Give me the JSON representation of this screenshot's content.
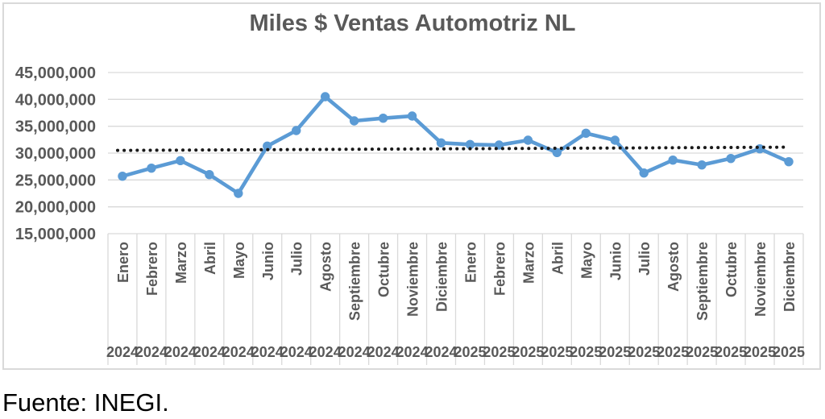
{
  "title": "Miles $ Ventas Automotriz NL",
  "source_note": "Fuente: INEGI.",
  "colors": {
    "series_line": "#5B9BD5",
    "gridline": "#D9D9D9",
    "frame_border": "#D9D9D9",
    "axis_text": "#595959",
    "title_text": "#595959",
    "trendline": "#1A1A1A",
    "source_text": "#000000",
    "background": "#FFFFFF"
  },
  "chart_data": {
    "type": "line",
    "title": "Miles $ Ventas Automotriz NL",
    "grid": true,
    "legend": false,
    "y_axis": {
      "min": 15000000,
      "max": 45000000,
      "tick_interval": 5000000,
      "tick_labels": [
        "45,000,000",
        "40,000,000",
        "35,000,000",
        "30,000,000",
        "25,000,000",
        "20,000,000",
        "15,000,000"
      ]
    },
    "x_axis": {
      "month_labels": [
        "Enero",
        "Febrero",
        "Marzo",
        "Abril",
        "Mayo",
        "Junio",
        "Julio",
        "Agosto",
        "Septiembre",
        "Octubre",
        "Noviembre",
        "Diciembre",
        "Enero",
        "Febrero",
        "Marzo",
        "Abril",
        "Mayo",
        "Junio",
        "Julio",
        "Agosto",
        "Septiembre",
        "Octubre",
        "Noviembre",
        "Diciembre"
      ],
      "year_labels": [
        "2024",
        "2024",
        "2024",
        "2024",
        "2024",
        "2024",
        "2024",
        "2024",
        "2024",
        "2024",
        "2024",
        "2024",
        "2025",
        "2025",
        "2025",
        "2025",
        "2025",
        "2025",
        "2025",
        "2025",
        "2025",
        "2025",
        "2025",
        "2025"
      ]
    },
    "series": [
      {
        "color": "#5B9BD5",
        "marker": "circle",
        "values": [
          25700000,
          27200000,
          28600000,
          26000000,
          22500000,
          31300000,
          34200000,
          40500000,
          36000000,
          36500000,
          36900000,
          31900000,
          31600000,
          31500000,
          32400000,
          30100000,
          33700000,
          32400000,
          26300000,
          28700000,
          27800000,
          29000000,
          30800000,
          28400000
        ]
      }
    ],
    "trendline": {
      "style": "dotted",
      "start_value": 30500000,
      "end_value": 31100000
    }
  }
}
